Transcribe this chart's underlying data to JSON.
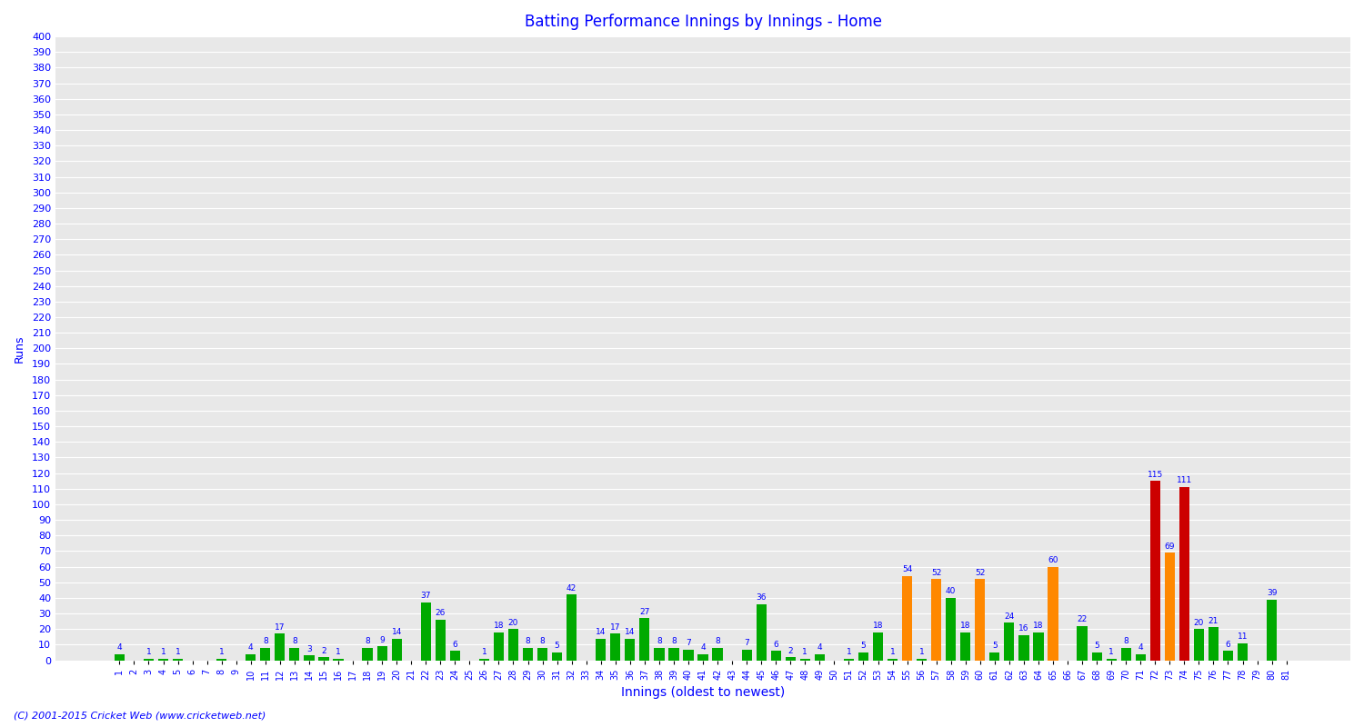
{
  "title": "Batting Performance Innings by Innings - Home",
  "xlabel": "Innings (oldest to newest)",
  "ylabel": "Runs",
  "ylim": [
    0,
    400
  ],
  "yticks": [
    0,
    10,
    20,
    30,
    40,
    50,
    60,
    70,
    80,
    90,
    100,
    110,
    120,
    130,
    140,
    150,
    160,
    170,
    180,
    190,
    200,
    210,
    220,
    230,
    240,
    250,
    260,
    270,
    280,
    290,
    300,
    310,
    320,
    330,
    340,
    350,
    360,
    370,
    380,
    390,
    400
  ],
  "background_color": "#ffffff",
  "plot_bg_color": "#e8e8e8",
  "innings": [
    1,
    2,
    3,
    4,
    5,
    6,
    7,
    8,
    9,
    10,
    11,
    12,
    13,
    14,
    15,
    16,
    17,
    18,
    19,
    20,
    21,
    22,
    23,
    24,
    25,
    26,
    27,
    28,
    29,
    30,
    31,
    32,
    33,
    34,
    35,
    36,
    37,
    38,
    39,
    40,
    41,
    42,
    43,
    44,
    45,
    46,
    47,
    48,
    49,
    50,
    51,
    52,
    53,
    54,
    55,
    56,
    57,
    58,
    59,
    60,
    61,
    62,
    63,
    64,
    65,
    66,
    67,
    68,
    69,
    70,
    71,
    72,
    73,
    74,
    75,
    76,
    77,
    78,
    79,
    80,
    81
  ],
  "values": [
    4,
    0,
    1,
    1,
    1,
    0,
    0,
    1,
    0,
    4,
    8,
    17,
    8,
    3,
    2,
    1,
    0,
    8,
    9,
    14,
    0,
    37,
    26,
    6,
    0,
    1,
    18,
    20,
    8,
    8,
    5,
    42,
    0,
    14,
    17,
    14,
    27,
    8,
    8,
    7,
    4,
    8,
    0,
    7,
    36,
    6,
    2,
    1,
    4,
    0,
    1,
    5,
    18,
    1,
    54,
    1,
    52,
    40,
    18,
    52,
    5,
    24,
    16,
    18,
    60,
    0,
    22,
    5,
    1,
    8,
    4,
    115,
    69,
    111,
    20,
    21,
    6,
    11,
    0,
    39,
    0
  ],
  "colors": [
    "#00aa00",
    "#00aa00",
    "#00aa00",
    "#00aa00",
    "#00aa00",
    "#00aa00",
    "#00aa00",
    "#00aa00",
    "#00aa00",
    "#00aa00",
    "#00aa00",
    "#00aa00",
    "#00aa00",
    "#00aa00",
    "#00aa00",
    "#00aa00",
    "#00aa00",
    "#00aa00",
    "#00aa00",
    "#00aa00",
    "#00aa00",
    "#00aa00",
    "#00aa00",
    "#00aa00",
    "#00aa00",
    "#00aa00",
    "#00aa00",
    "#00aa00",
    "#00aa00",
    "#00aa00",
    "#00aa00",
    "#00aa00",
    "#00aa00",
    "#00aa00",
    "#00aa00",
    "#00aa00",
    "#00aa00",
    "#00aa00",
    "#00aa00",
    "#00aa00",
    "#00aa00",
    "#00aa00",
    "#00aa00",
    "#00aa00",
    "#00aa00",
    "#00aa00",
    "#00aa00",
    "#00aa00",
    "#00aa00",
    "#00aa00",
    "#00aa00",
    "#00aa00",
    "#00aa00",
    "#00aa00",
    "#ff8800",
    "#00aa00",
    "#ff8800",
    "#00aa00",
    "#00aa00",
    "#ff8800",
    "#00aa00",
    "#00aa00",
    "#00aa00",
    "#00aa00",
    "#ff8800",
    "#00aa00",
    "#00aa00",
    "#00aa00",
    "#00aa00",
    "#00aa00",
    "#00aa00",
    "#cc0000",
    "#ff8800",
    "#cc0000",
    "#00aa00",
    "#00aa00",
    "#00aa00",
    "#00aa00",
    "#00aa00",
    "#00aa00",
    "#00aa00"
  ],
  "footer": "(C) 2001-2015 Cricket Web (www.cricketweb.net)"
}
